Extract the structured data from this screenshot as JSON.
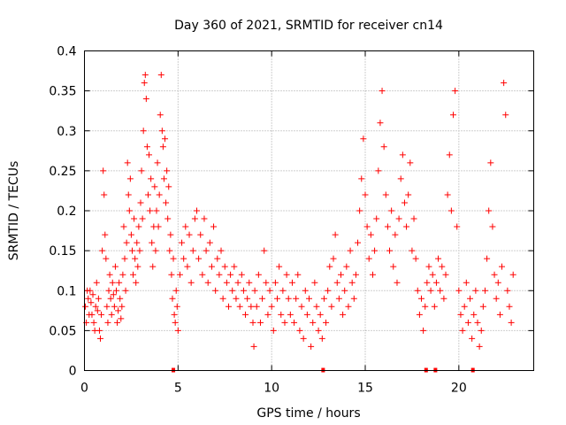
{
  "chart_data": {
    "type": "scatter",
    "title": "Day 360 of 2021, SRMTID for receiver cn14",
    "xlabel": "GPS time / hours",
    "ylabel": "SRMTID / TECUs",
    "xlim": [
      0,
      24
    ],
    "ylim": [
      0,
      0.4
    ],
    "xticks": [
      0,
      5,
      10,
      15,
      20
    ],
    "xtick_labels": [
      "0",
      "5",
      "10",
      "15",
      "20"
    ],
    "yticks": [
      0,
      0.05,
      0.1,
      0.15,
      0.2,
      0.25,
      0.3,
      0.35,
      0.4
    ],
    "ytick_labels": [
      "0",
      "0.05",
      "0.1",
      "0.15",
      "0.2",
      "0.25",
      "0.3",
      "0.35",
      "0.4"
    ],
    "grid": true,
    "marker": "+",
    "series": [
      {
        "name": "SRMTID",
        "color": "#ff0000",
        "points": [
          [
            0.05,
            0.08
          ],
          [
            0.1,
            0.06
          ],
          [
            0.15,
            0.1
          ],
          [
            0.2,
            0.09
          ],
          [
            0.25,
            0.07
          ],
          [
            0.3,
            0.1
          ],
          [
            0.35,
            0.085
          ],
          [
            0.4,
            0.07
          ],
          [
            0.45,
            0.095
          ],
          [
            0.5,
            0.06
          ],
          [
            0.55,
            0.05
          ],
          [
            0.6,
            0.08
          ],
          [
            0.65,
            0.11
          ],
          [
            0.7,
            0.075
          ],
          [
            0.75,
            0.09
          ],
          [
            0.8,
            0.05
          ],
          [
            0.85,
            0.04
          ],
          [
            0.9,
            0.07
          ],
          [
            0.95,
            0.15
          ],
          [
            1.0,
            0.25
          ],
          [
            1.05,
            0.22
          ],
          [
            1.1,
            0.17
          ],
          [
            1.15,
            0.14
          ],
          [
            1.2,
            0.08
          ],
          [
            1.25,
            0.06
          ],
          [
            1.3,
            0.1
          ],
          [
            1.35,
            0.12
          ],
          [
            1.4,
            0.09
          ],
          [
            1.45,
            0.07
          ],
          [
            1.5,
            0.11
          ],
          [
            1.55,
            0.095
          ],
          [
            1.6,
            0.08
          ],
          [
            1.65,
            0.13
          ],
          [
            1.7,
            0.1
          ],
          [
            1.75,
            0.06
          ],
          [
            1.8,
            0.075
          ],
          [
            1.85,
            0.11
          ],
          [
            1.9,
            0.09
          ],
          [
            1.95,
            0.065
          ],
          [
            2.0,
            0.08
          ],
          [
            2.05,
            0.12
          ],
          [
            2.1,
            0.18
          ],
          [
            2.15,
            0.14
          ],
          [
            2.2,
            0.1
          ],
          [
            2.25,
            0.16
          ],
          [
            2.3,
            0.26
          ],
          [
            2.35,
            0.22
          ],
          [
            2.4,
            0.2
          ],
          [
            2.45,
            0.24
          ],
          [
            2.5,
            0.17
          ],
          [
            2.55,
            0.15
          ],
          [
            2.6,
            0.12
          ],
          [
            2.65,
            0.19
          ],
          [
            2.7,
            0.14
          ],
          [
            2.75,
            0.11
          ],
          [
            2.8,
            0.16
          ],
          [
            2.85,
            0.13
          ],
          [
            2.9,
            0.18
          ],
          [
            2.95,
            0.15
          ],
          [
            3.0,
            0.21
          ],
          [
            3.05,
            0.25
          ],
          [
            3.1,
            0.19
          ],
          [
            3.15,
            0.3
          ],
          [
            3.2,
            0.36
          ],
          [
            3.25,
            0.37
          ],
          [
            3.3,
            0.34
          ],
          [
            3.35,
            0.28
          ],
          [
            3.4,
            0.22
          ],
          [
            3.45,
            0.27
          ],
          [
            3.5,
            0.2
          ],
          [
            3.55,
            0.24
          ],
          [
            3.6,
            0.16
          ],
          [
            3.65,
            0.13
          ],
          [
            3.7,
            0.18
          ],
          [
            3.75,
            0.23
          ],
          [
            3.8,
            0.15
          ],
          [
            3.85,
            0.2
          ],
          [
            3.9,
            0.26
          ],
          [
            3.95,
            0.18
          ],
          [
            4.0,
            0.22
          ],
          [
            4.05,
            0.32
          ],
          [
            4.1,
            0.37
          ],
          [
            4.15,
            0.3
          ],
          [
            4.2,
            0.28
          ],
          [
            4.25,
            0.24
          ],
          [
            4.3,
            0.29
          ],
          [
            4.35,
            0.21
          ],
          [
            4.4,
            0.25
          ],
          [
            4.45,
            0.19
          ],
          [
            4.5,
            0.23
          ],
          [
            4.55,
            0.15
          ],
          [
            4.6,
            0.17
          ],
          [
            4.65,
            0.12
          ],
          [
            4.7,
            0.09
          ],
          [
            4.75,
            0.14
          ],
          [
            4.8,
            0.07
          ],
          [
            4.85,
            0.06
          ],
          [
            4.9,
            0.1
          ],
          [
            4.95,
            0.08
          ],
          [
            5.0,
            0.05
          ],
          [
            5.1,
            0.12
          ],
          [
            5.2,
            0.16
          ],
          [
            5.3,
            0.14
          ],
          [
            5.4,
            0.18
          ],
          [
            5.5,
            0.13
          ],
          [
            5.6,
            0.17
          ],
          [
            5.7,
            0.11
          ],
          [
            5.8,
            0.15
          ],
          [
            5.9,
            0.19
          ],
          [
            6.0,
            0.2
          ],
          [
            6.1,
            0.14
          ],
          [
            6.2,
            0.17
          ],
          [
            6.3,
            0.12
          ],
          [
            6.4,
            0.19
          ],
          [
            6.5,
            0.15
          ],
          [
            6.6,
            0.11
          ],
          [
            6.7,
            0.16
          ],
          [
            6.8,
            0.13
          ],
          [
            6.9,
            0.18
          ],
          [
            7.0,
            0.1
          ],
          [
            7.1,
            0.14
          ],
          [
            7.2,
            0.12
          ],
          [
            7.3,
            0.15
          ],
          [
            7.4,
            0.09
          ],
          [
            7.5,
            0.13
          ],
          [
            7.6,
            0.11
          ],
          [
            7.7,
            0.08
          ],
          [
            7.8,
            0.12
          ],
          [
            7.9,
            0.1
          ],
          [
            8.0,
            0.13
          ],
          [
            8.1,
            0.09
          ],
          [
            8.2,
            0.11
          ],
          [
            8.3,
            0.08
          ],
          [
            8.4,
            0.12
          ],
          [
            8.5,
            0.1
          ],
          [
            8.6,
            0.07
          ],
          [
            8.7,
            0.09
          ],
          [
            8.8,
            0.11
          ],
          [
            8.9,
            0.08
          ],
          [
            9.0,
            0.06
          ],
          [
            9.05,
            0.03
          ],
          [
            9.1,
            0.1
          ],
          [
            9.2,
            0.08
          ],
          [
            9.3,
            0.12
          ],
          [
            9.4,
            0.06
          ],
          [
            9.5,
            0.09
          ],
          [
            9.6,
            0.15
          ],
          [
            9.7,
            0.11
          ],
          [
            9.8,
            0.07
          ],
          [
            9.9,
            0.1
          ],
          [
            10.0,
            0.08
          ],
          [
            10.1,
            0.05
          ],
          [
            10.2,
            0.11
          ],
          [
            10.3,
            0.09
          ],
          [
            10.4,
            0.13
          ],
          [
            10.5,
            0.07
          ],
          [
            10.6,
            0.1
          ],
          [
            10.7,
            0.06
          ],
          [
            10.8,
            0.12
          ],
          [
            10.9,
            0.09
          ],
          [
            11.0,
            0.07
          ],
          [
            11.1,
            0.11
          ],
          [
            11.2,
            0.06
          ],
          [
            11.3,
            0.09
          ],
          [
            11.4,
            0.12
          ],
          [
            11.5,
            0.05
          ],
          [
            11.6,
            0.08
          ],
          [
            11.7,
            0.04
          ],
          [
            11.8,
            0.1
          ],
          [
            11.9,
            0.07
          ],
          [
            12.0,
            0.09
          ],
          [
            12.1,
            0.03
          ],
          [
            12.2,
            0.06
          ],
          [
            12.3,
            0.11
          ],
          [
            12.4,
            0.08
          ],
          [
            12.5,
            0.05
          ],
          [
            12.6,
            0.07
          ],
          [
            12.7,
            0.04
          ],
          [
            12.8,
            0.09
          ],
          [
            12.9,
            0.06
          ],
          [
            13.0,
            0.1
          ],
          [
            13.1,
            0.13
          ],
          [
            13.2,
            0.08
          ],
          [
            13.3,
            0.14
          ],
          [
            13.4,
            0.17
          ],
          [
            13.5,
            0.11
          ],
          [
            13.6,
            0.09
          ],
          [
            13.7,
            0.12
          ],
          [
            13.8,
            0.07
          ],
          [
            13.9,
            0.1
          ],
          [
            14.0,
            0.13
          ],
          [
            14.1,
            0.08
          ],
          [
            14.2,
            0.15
          ],
          [
            14.3,
            0.11
          ],
          [
            14.4,
            0.09
          ],
          [
            14.5,
            0.12
          ],
          [
            14.6,
            0.16
          ],
          [
            14.7,
            0.2
          ],
          [
            14.8,
            0.24
          ],
          [
            14.9,
            0.29
          ],
          [
            15.0,
            0.22
          ],
          [
            15.1,
            0.18
          ],
          [
            15.2,
            0.14
          ],
          [
            15.3,
            0.17
          ],
          [
            15.4,
            0.12
          ],
          [
            15.5,
            0.15
          ],
          [
            15.6,
            0.19
          ],
          [
            15.7,
            0.25
          ],
          [
            15.8,
            0.31
          ],
          [
            15.9,
            0.35
          ],
          [
            16.0,
            0.28
          ],
          [
            16.1,
            0.22
          ],
          [
            16.2,
            0.18
          ],
          [
            16.3,
            0.15
          ],
          [
            16.4,
            0.2
          ],
          [
            16.5,
            0.13
          ],
          [
            16.6,
            0.17
          ],
          [
            16.7,
            0.11
          ],
          [
            16.8,
            0.19
          ],
          [
            16.9,
            0.24
          ],
          [
            17.0,
            0.27
          ],
          [
            17.1,
            0.21
          ],
          [
            17.2,
            0.18
          ],
          [
            17.3,
            0.22
          ],
          [
            17.4,
            0.26
          ],
          [
            17.5,
            0.15
          ],
          [
            17.6,
            0.19
          ],
          [
            17.7,
            0.14
          ],
          [
            17.8,
            0.1
          ],
          [
            17.9,
            0.07
          ],
          [
            18.0,
            0.09
          ],
          [
            18.1,
            0.05
          ],
          [
            18.2,
            0.08
          ],
          [
            18.3,
            0.11
          ],
          [
            18.4,
            0.13
          ],
          [
            18.5,
            0.1
          ],
          [
            18.6,
            0.12
          ],
          [
            18.7,
            0.08
          ],
          [
            18.8,
            0.11
          ],
          [
            18.9,
            0.14
          ],
          [
            19.0,
            0.1
          ],
          [
            19.1,
            0.13
          ],
          [
            19.2,
            0.09
          ],
          [
            19.3,
            0.12
          ],
          [
            19.4,
            0.22
          ],
          [
            19.5,
            0.27
          ],
          [
            19.6,
            0.2
          ],
          [
            19.7,
            0.32
          ],
          [
            19.8,
            0.35
          ],
          [
            19.9,
            0.18
          ],
          [
            20.0,
            0.1
          ],
          [
            20.1,
            0.07
          ],
          [
            20.2,
            0.05
          ],
          [
            20.3,
            0.08
          ],
          [
            20.4,
            0.11
          ],
          [
            20.5,
            0.06
          ],
          [
            20.6,
            0.09
          ],
          [
            20.7,
            0.04
          ],
          [
            20.8,
            0.07
          ],
          [
            20.9,
            0.1
          ],
          [
            21.0,
            0.06
          ],
          [
            21.1,
            0.03
          ],
          [
            21.2,
            0.05
          ],
          [
            21.3,
            0.08
          ],
          [
            21.4,
            0.1
          ],
          [
            21.5,
            0.14
          ],
          [
            21.6,
            0.2
          ],
          [
            21.7,
            0.26
          ],
          [
            21.8,
            0.18
          ],
          [
            21.9,
            0.12
          ],
          [
            22.0,
            0.09
          ],
          [
            22.1,
            0.11
          ],
          [
            22.2,
            0.07
          ],
          [
            22.3,
            0.13
          ],
          [
            22.4,
            0.36
          ],
          [
            22.5,
            0.32
          ],
          [
            22.6,
            0.1
          ],
          [
            22.7,
            0.08
          ],
          [
            22.8,
            0.06
          ],
          [
            22.9,
            0.12
          ]
        ]
      }
    ],
    "edge_markers_x": [
      4.75,
      12.75,
      18.25,
      18.75,
      20.75
    ]
  }
}
